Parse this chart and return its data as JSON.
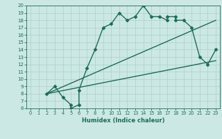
{
  "xlabel": "Humidex (Indice chaleur)",
  "xlim": [
    -0.5,
    23.5
  ],
  "ylim": [
    6,
    20
  ],
  "xticks": [
    0,
    1,
    2,
    3,
    4,
    5,
    6,
    7,
    8,
    9,
    10,
    11,
    12,
    13,
    14,
    15,
    16,
    17,
    18,
    19,
    20,
    21,
    22,
    23
  ],
  "yticks": [
    6,
    7,
    8,
    9,
    10,
    11,
    12,
    13,
    14,
    15,
    16,
    17,
    18,
    19,
    20
  ],
  "bg_color": "#cce8e4",
  "line_color": "#1a6b5a",
  "grid_color": "#aacfc9",
  "line1_x": [
    2,
    3,
    4,
    5,
    5,
    6,
    6,
    7,
    8,
    9,
    10,
    11,
    12,
    13,
    14,
    15,
    16,
    17,
    17,
    18,
    18,
    19,
    20,
    21,
    22,
    23
  ],
  "line1_y": [
    8,
    9,
    7.5,
    6.5,
    6,
    6.5,
    8.5,
    11.5,
    14,
    17,
    17.5,
    19,
    18,
    18.5,
    20,
    18.5,
    18.5,
    18,
    18.5,
    18.5,
    18,
    18,
    17,
    13,
    12,
    14
  ],
  "line2_x": [
    2,
    23
  ],
  "line2_y": [
    8,
    18
  ],
  "line3_x": [
    2,
    23
  ],
  "line3_y": [
    8,
    12.5
  ],
  "marker": "D",
  "markersize": 2.5,
  "linewidth": 1.0
}
